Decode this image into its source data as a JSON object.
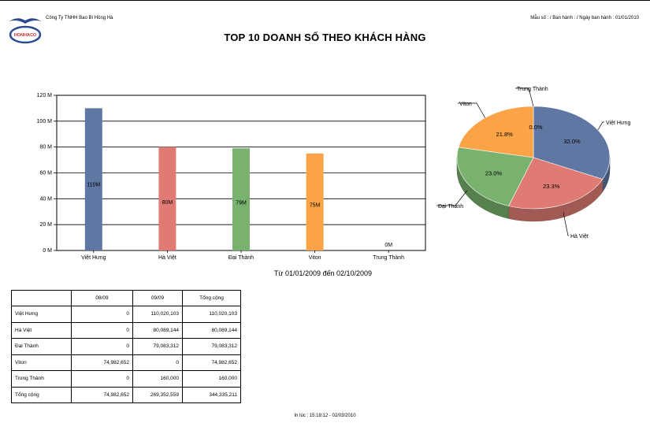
{
  "header": {
    "company": "Công Ty TNHH Bao Bì Hồng Hà",
    "form_code": "Mẫu số : / Ban hành : / Ngày ban hành : 01/01/2010",
    "logo_text": "HONHACO",
    "title": "TOP 10 DOANH SỐ THEO KHÁCH HÀNG",
    "subtitle": "Từ 01/01/2009 đến 02/10/2009"
  },
  "colors": {
    "blue": "#5f77a2",
    "red": "#e07b74",
    "green": "#79b26e",
    "orange": "#fba447",
    "logo": "#2b4a90"
  },
  "chart_data": [
    {
      "type": "bar",
      "categories": [
        "Việt Hưng",
        "Hà Việt",
        "Đại Thành",
        "Viton",
        "Trung Thành"
      ],
      "values": [
        110,
        80,
        79,
        75,
        0
      ],
      "data_labels": [
        "110M",
        "80M",
        "79M",
        "75M",
        "0M"
      ],
      "colors": [
        "#5f77a2",
        "#e07b74",
        "#79b26e",
        "#fba447",
        "#fba447"
      ],
      "ylim": [
        0,
        120
      ],
      "yticks": [
        0,
        20,
        40,
        60,
        80,
        100,
        120
      ],
      "ytick_labels": [
        "0 M",
        "20 M",
        "40 M",
        "60 M",
        "80 M",
        "100 M",
        "120 M"
      ],
      "grid": true
    },
    {
      "type": "pie",
      "labels": [
        "Việt Hưng",
        "Hà Việt",
        "Đại Thành",
        "Viton",
        "Trung Thành"
      ],
      "values": [
        32.0,
        23.3,
        23.0,
        21.8,
        0.0
      ],
      "pct_labels": [
        "32.0%",
        "23.3%",
        "23.0%",
        "21.8%",
        "0.0%"
      ],
      "colors": [
        "#5f77a2",
        "#e07b74",
        "#79b26e",
        "#fba447",
        "#fba447"
      ]
    }
  ],
  "table": {
    "headers": [
      "",
      "08/09",
      "09/09",
      "Tổng cộng"
    ],
    "rows": [
      [
        "Việt Hưng",
        "0",
        "110,020,103",
        "110,020,103"
      ],
      [
        "Hà Việt",
        "0",
        "80,089,144",
        "80,089,144"
      ],
      [
        "Đại Thành",
        "0",
        "79,083,312",
        "79,083,312"
      ],
      [
        "Viton",
        "74,982,652",
        "0",
        "74,982,652"
      ],
      [
        "Trung Thành",
        "0",
        "160,000",
        "160,000"
      ],
      [
        "Tổng cộng",
        "74,982,652",
        "269,352,559",
        "344,335,211"
      ]
    ]
  },
  "footer": {
    "printed": "In lúc : 15:18:12 - 02/03/2010"
  }
}
